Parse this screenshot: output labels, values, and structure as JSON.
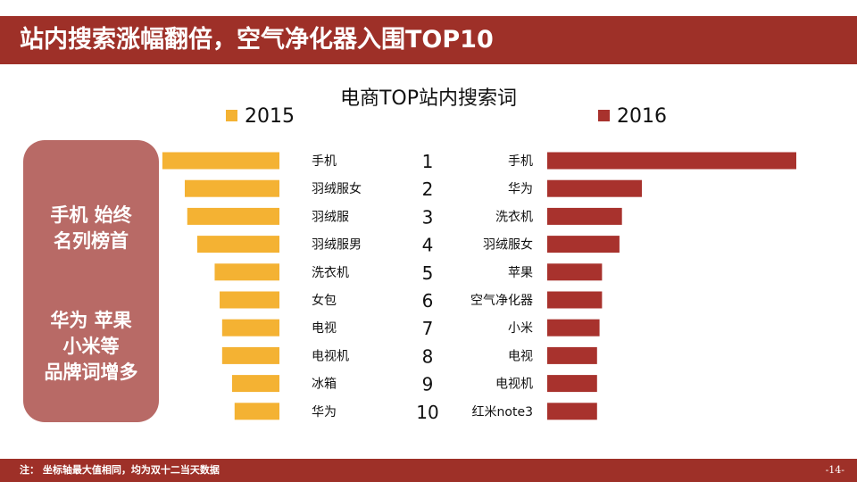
{
  "header": {
    "title": "站内搜索涨幅翻倍，空气净化器入围TOP10"
  },
  "colors": {
    "accent": "#9e3028",
    "bar_2015": "#f4b233",
    "bar_2016": "#a8322d",
    "side_box": "#b86a66"
  },
  "side_box": {
    "line1": "手机 始终",
    "line2": "名列榜首",
    "line3": "华为 苹果",
    "line4": "小米等",
    "line5": "品牌词增多"
  },
  "footer": {
    "note": "注： 坐标轴最大值相同，均为双十二当天数据",
    "page": "-14-"
  },
  "chart_data": {
    "type": "bar",
    "title": "电商TOP站内搜索词",
    "ranks": [
      "1",
      "2",
      "3",
      "4",
      "5",
      "6",
      "7",
      "8",
      "9",
      "10"
    ],
    "max_value": 100,
    "series": [
      {
        "name": "2015",
        "categories": [
          "手机",
          "羽绒服女",
          "羽绒服",
          "羽绒服男",
          "洗衣机",
          "女包",
          "电视",
          "电视机",
          "冰箱",
          "华为"
        ],
        "values": [
          47,
          38,
          37,
          33,
          26,
          24,
          23,
          23,
          19,
          18
        ]
      },
      {
        "name": "2016",
        "categories": [
          "手机",
          "华为",
          "洗衣机",
          "羽绒服女",
          "苹果",
          "空气净化器",
          "小米",
          "电视",
          "电视机",
          "红米note3"
        ],
        "values": [
          100,
          38,
          30,
          29,
          22,
          22,
          21,
          20,
          20,
          20
        ]
      }
    ]
  }
}
